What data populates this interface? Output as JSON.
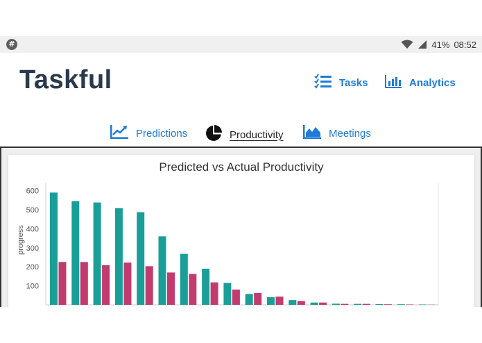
{
  "status_bar": {
    "app_icon": "#",
    "battery": "41%",
    "time": "08:52",
    "icons": [
      "wifi-icon",
      "signal-icon"
    ]
  },
  "header": {
    "app_title": "Taskful",
    "nav": [
      {
        "label": "Tasks",
        "icon": "task-list-icon"
      },
      {
        "label": "Analytics",
        "icon": "bar-chart-icon"
      }
    ]
  },
  "tabs": [
    {
      "label": "Predictions",
      "icon": "line-chart-icon",
      "active": false
    },
    {
      "label": "Productivity",
      "icon": "pie-chart-icon",
      "active": true
    },
    {
      "label": "Meetings",
      "icon": "area-chart-icon",
      "active": false
    }
  ],
  "colors": {
    "accent": "#1e7bd6",
    "title": "#2a3a4c",
    "predicted": "#1a9e98",
    "actual": "#c23b6e"
  },
  "chart_data": {
    "type": "bar",
    "title": "Predicted vs Actual Productivity",
    "ylabel": "progress",
    "xlabel": "",
    "yticks": [
      100,
      200,
      300,
      400,
      500,
      600
    ],
    "ylim": [
      0,
      640
    ],
    "grid": false,
    "series": [
      {
        "values": [
          590,
          545,
          538,
          508,
          487,
          360,
          268,
          190,
          115,
          57,
          40,
          25,
          12,
          6,
          5,
          4,
          3,
          2
        ]
      },
      {
        "values": [
          225,
          225,
          208,
          222,
          203,
          170,
          162,
          118,
          80,
          62,
          43,
          20,
          12,
          5,
          5,
          3,
          2,
          1
        ]
      }
    ]
  }
}
